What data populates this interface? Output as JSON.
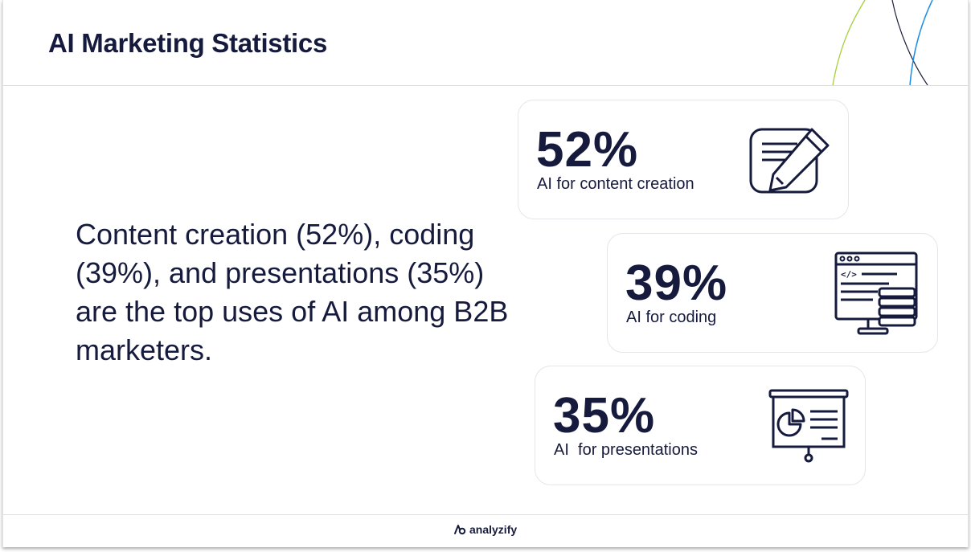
{
  "header": {
    "title": "AI Marketing Statistics"
  },
  "main": {
    "statement": "Content creation (52%), coding (39%), and presentations (35%) are the top uses of AI among B2B marketers."
  },
  "cards": [
    {
      "percent": "52%",
      "label": "AI for content creation",
      "icon": "pencil-note-icon"
    },
    {
      "percent": "39%",
      "label": "AI for coding",
      "icon": "code-monitor-icon"
    },
    {
      "percent": "35%",
      "label": "AI  for presentations",
      "icon": "presentation-board-icon"
    }
  ],
  "footer": {
    "brand": "analyzify"
  },
  "colors": {
    "text": "#161b3d",
    "accent_green": "#a6cf3a",
    "accent_blue": "#1d8ee8",
    "accent_dark": "#1b1f3b"
  }
}
